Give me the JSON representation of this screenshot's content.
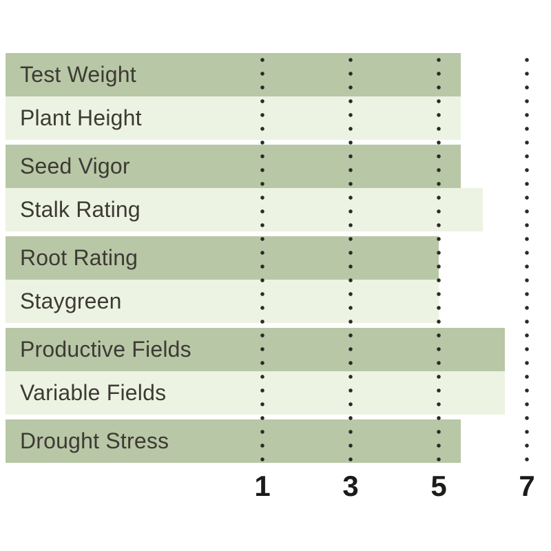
{
  "chart_data": {
    "type": "bar",
    "orientation": "horizontal",
    "title": "",
    "categories": [
      "Test Weight",
      "Plant Height",
      "Seed Vigor",
      "Stalk Rating",
      "Root Rating",
      "Staygreen",
      "Productive Fields",
      "Variable Fields",
      "Drought Stress"
    ],
    "values": [
      5.5,
      5.5,
      5.5,
      6,
      5,
      5,
      6.5,
      6.5,
      5.5
    ],
    "x_ticks": [
      1,
      3,
      5,
      7
    ],
    "xlim_shown": [
      1,
      7
    ],
    "grid": "dotted vertical lines at each x tick, drawn over bars",
    "legend": "none",
    "row_groups": [
      [
        "Test Weight",
        "Plant Height"
      ],
      [
        "Seed Vigor",
        "Stalk Rating"
      ],
      [
        "Root Rating",
        "Staygreen"
      ],
      [
        "Productive Fields",
        "Variable Fields"
      ],
      [
        "Drought Stress"
      ]
    ],
    "row_style": "rows alternate dark/light green, thin white gap between groups",
    "colors": {
      "bar_dark": "#b8c7a6",
      "bar_light": "#ecf3e2",
      "dot": "#2b2a26",
      "label_text": "#3d3a34",
      "tick_text": "#1b1b19",
      "background": "#ffffff"
    }
  }
}
